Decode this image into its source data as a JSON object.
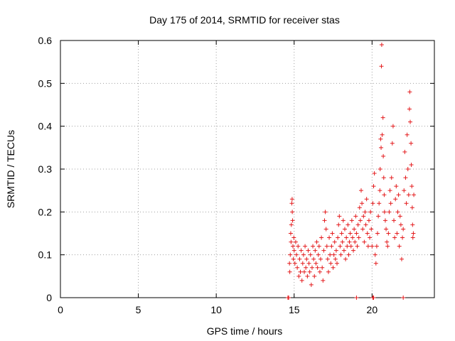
{
  "chart_data": {
    "type": "scatter",
    "title": "Day 175 of 2014, SRMTID for receiver stas",
    "xlabel": "GPS time / hours",
    "ylabel": "SRMTID / TECUs",
    "xlim": [
      0,
      24
    ],
    "ylim": [
      0,
      0.6
    ],
    "x_ticks": [
      0,
      5,
      10,
      15,
      20
    ],
    "x_tick_labels": [
      "0",
      "5",
      "10",
      "15",
      "20"
    ],
    "y_ticks": [
      0,
      0.1,
      0.2,
      0.3,
      0.4,
      0.5,
      0.6
    ],
    "y_tick_labels": [
      "0",
      "0.1",
      "0.2",
      "0.3",
      "0.4",
      "0.5",
      "0.6"
    ],
    "grid": true,
    "legend": "none",
    "marker": "plus",
    "series": [
      {
        "name": "SRMTID",
        "color": "#e41a1c",
        "points": [
          [
            14.6,
            0.0
          ],
          [
            14.65,
            0.0
          ],
          [
            19.0,
            0.0
          ],
          [
            20.05,
            0.0
          ],
          [
            20.1,
            0.0
          ],
          [
            22.0,
            0.0
          ],
          [
            14.7,
            0.08
          ],
          [
            14.72,
            0.06
          ],
          [
            14.75,
            0.1
          ],
          [
            14.78,
            0.15
          ],
          [
            14.8,
            0.13
          ],
          [
            14.82,
            0.17
          ],
          [
            14.85,
            0.22
          ],
          [
            14.87,
            0.23
          ],
          [
            14.88,
            0.2
          ],
          [
            14.9,
            0.18
          ],
          [
            14.92,
            0.12
          ],
          [
            14.95,
            0.09
          ],
          [
            14.98,
            0.14
          ],
          [
            15.0,
            0.11
          ],
          [
            15.05,
            0.08
          ],
          [
            15.1,
            0.13
          ],
          [
            15.15,
            0.1
          ],
          [
            15.2,
            0.07
          ],
          [
            15.25,
            0.12
          ],
          [
            15.3,
            0.05
          ],
          [
            15.35,
            0.09
          ],
          [
            15.4,
            0.06
          ],
          [
            15.45,
            0.11
          ],
          [
            15.5,
            0.04
          ],
          [
            15.55,
            0.08
          ],
          [
            15.6,
            0.1
          ],
          [
            15.65,
            0.06
          ],
          [
            15.7,
            0.12
          ],
          [
            15.75,
            0.07
          ],
          [
            15.8,
            0.09
          ],
          [
            15.85,
            0.05
          ],
          [
            15.9,
            0.11
          ],
          [
            15.95,
            0.08
          ],
          [
            16.0,
            0.06
          ],
          [
            16.05,
            0.1
          ],
          [
            16.1,
            0.03
          ],
          [
            16.15,
            0.07
          ],
          [
            16.2,
            0.12
          ],
          [
            16.25,
            0.09
          ],
          [
            16.3,
            0.05
          ],
          [
            16.35,
            0.11
          ],
          [
            16.4,
            0.08
          ],
          [
            16.45,
            0.13
          ],
          [
            16.5,
            0.07
          ],
          [
            16.55,
            0.1
          ],
          [
            16.6,
            0.12
          ],
          [
            16.65,
            0.06
          ],
          [
            16.7,
            0.09
          ],
          [
            16.75,
            0.14
          ],
          [
            16.8,
            0.07
          ],
          [
            16.85,
            0.04
          ],
          [
            16.9,
            0.11
          ],
          [
            16.95,
            0.18
          ],
          [
            17.0,
            0.2
          ],
          [
            17.05,
            0.16
          ],
          [
            17.1,
            0.12
          ],
          [
            17.15,
            0.09
          ],
          [
            17.2,
            0.06
          ],
          [
            17.25,
            0.14
          ],
          [
            17.3,
            0.1
          ],
          [
            17.35,
            0.08
          ],
          [
            17.4,
            0.12
          ],
          [
            17.45,
            0.15
          ],
          [
            17.5,
            0.07
          ],
          [
            17.55,
            0.1
          ],
          [
            17.6,
            0.13
          ],
          [
            17.65,
            0.09
          ],
          [
            17.7,
            0.11
          ],
          [
            17.75,
            0.08
          ],
          [
            17.8,
            0.14
          ],
          [
            17.85,
            0.17
          ],
          [
            17.9,
            0.19
          ],
          [
            17.95,
            0.12
          ],
          [
            18.0,
            0.1
          ],
          [
            18.05,
            0.15
          ],
          [
            18.1,
            0.13
          ],
          [
            18.15,
            0.18
          ],
          [
            18.2,
            0.11
          ],
          [
            18.25,
            0.16
          ],
          [
            18.3,
            0.09
          ],
          [
            18.35,
            0.14
          ],
          [
            18.4,
            0.12
          ],
          [
            18.45,
            0.17
          ],
          [
            18.5,
            0.1
          ],
          [
            18.55,
            0.13
          ],
          [
            18.6,
            0.15
          ],
          [
            18.65,
            0.12
          ],
          [
            18.7,
            0.18
          ],
          [
            18.75,
            0.14
          ],
          [
            18.8,
            0.11
          ],
          [
            18.85,
            0.16
          ],
          [
            18.9,
            0.13
          ],
          [
            18.95,
            0.19
          ],
          [
            19.0,
            0.15
          ],
          [
            19.05,
            0.12
          ],
          [
            19.1,
            0.17
          ],
          [
            19.15,
            0.14
          ],
          [
            19.2,
            0.21
          ],
          [
            19.25,
            0.18
          ],
          [
            19.3,
            0.25
          ],
          [
            19.35,
            0.22
          ],
          [
            19.4,
            0.16
          ],
          [
            19.45,
            0.19
          ],
          [
            19.5,
            0.13
          ],
          [
            19.55,
            0.2
          ],
          [
            19.6,
            0.17
          ],
          [
            19.65,
            0.23
          ],
          [
            19.7,
            0.15
          ],
          [
            19.75,
            0.12
          ],
          [
            19.8,
            0.18
          ],
          [
            19.85,
            0.14
          ],
          [
            19.9,
            0.2
          ],
          [
            19.95,
            0.16
          ],
          [
            20.0,
            0.12
          ],
          [
            20.05,
            0.22
          ],
          [
            20.1,
            0.26
          ],
          [
            20.15,
            0.29
          ],
          [
            20.2,
            0.1
          ],
          [
            20.25,
            0.08
          ],
          [
            20.3,
            0.12
          ],
          [
            20.35,
            0.15
          ],
          [
            20.4,
            0.19
          ],
          [
            20.45,
            0.22
          ],
          [
            20.5,
            0.25
          ],
          [
            20.52,
            0.3
          ],
          [
            20.55,
            0.37
          ],
          [
            20.58,
            0.35
          ],
          [
            20.6,
            0.54
          ],
          [
            20.62,
            0.59
          ],
          [
            20.65,
            0.38
          ],
          [
            20.7,
            0.42
          ],
          [
            20.72,
            0.33
          ],
          [
            20.75,
            0.28
          ],
          [
            20.78,
            0.24
          ],
          [
            20.8,
            0.2
          ],
          [
            20.85,
            0.18
          ],
          [
            20.9,
            0.16
          ],
          [
            20.95,
            0.13
          ],
          [
            21.0,
            0.12
          ],
          [
            21.05,
            0.15
          ],
          [
            21.1,
            0.2
          ],
          [
            21.15,
            0.25
          ],
          [
            21.2,
            0.22
          ],
          [
            21.25,
            0.28
          ],
          [
            21.3,
            0.36
          ],
          [
            21.35,
            0.4
          ],
          [
            21.4,
            0.18
          ],
          [
            21.45,
            0.14
          ],
          [
            21.5,
            0.23
          ],
          [
            21.55,
            0.26
          ],
          [
            21.6,
            0.15
          ],
          [
            21.65,
            0.2
          ],
          [
            21.7,
            0.24
          ],
          [
            21.75,
            0.12
          ],
          [
            21.8,
            0.19
          ],
          [
            21.85,
            0.17
          ],
          [
            21.9,
            0.09
          ],
          [
            21.95,
            0.14
          ],
          [
            22.0,
            0.16
          ],
          [
            22.05,
            0.25
          ],
          [
            22.1,
            0.34
          ],
          [
            22.15,
            0.28
          ],
          [
            22.2,
            0.22
          ],
          [
            22.25,
            0.38
          ],
          [
            22.3,
            0.3
          ],
          [
            22.35,
            0.24
          ],
          [
            22.4,
            0.44
          ],
          [
            22.42,
            0.48
          ],
          [
            22.45,
            0.41
          ],
          [
            22.5,
            0.36
          ],
          [
            22.52,
            0.31
          ],
          [
            22.55,
            0.26
          ],
          [
            22.58,
            0.21
          ],
          [
            22.6,
            0.17
          ],
          [
            22.62,
            0.14
          ],
          [
            22.65,
            0.15
          ],
          [
            22.68,
            0.24
          ]
        ]
      }
    ]
  }
}
